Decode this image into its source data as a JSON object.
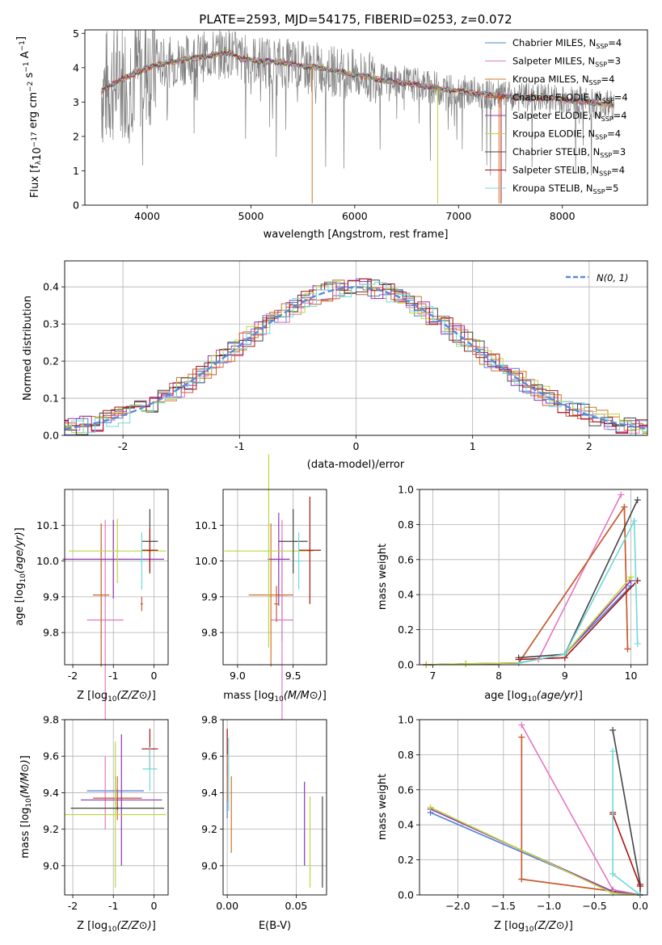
{
  "colors": {
    "chabrier_miles": "#4f7fd4",
    "salpeter_miles": "#e377c2",
    "kroupa_miles": "#d4732a",
    "chabrier_elodie": "#c85a35",
    "salpeter_elodie": "#9434b0",
    "kroupa_elodie": "#bcd63b",
    "chabrier_stelib": "#454545",
    "salpeter_stelib": "#aa1111",
    "kroupa_stelib": "#70d8d8",
    "data": "#808080",
    "gauss": "#5b8ad8",
    "grid": "#b0b0b0"
  },
  "chart_data": [
    {
      "id": "spectrum",
      "type": "line",
      "title": "PLATE=2593, MJD=54175, FIBERID=0253, z=0.072",
      "xlabel": "wavelength [Angstrom, rest frame]",
      "ylabel": "Flux [fλ10⁻¹⁷ erg cm⁻² s⁻¹ A⁻¹]",
      "xlim": [
        3400,
        8820
      ],
      "ylim": [
        0,
        5.1
      ],
      "xticks": [
        4000,
        5000,
        6000,
        7000,
        8000
      ],
      "yticks": [
        0,
        1,
        2,
        3,
        4,
        5
      ],
      "grid": false,
      "legend_position": "top-right",
      "continuum": [
        [
          3550,
          3.3
        ],
        [
          3650,
          3.5
        ],
        [
          3750,
          3.65
        ],
        [
          3850,
          3.8
        ],
        [
          3950,
          3.92
        ],
        [
          4050,
          4.05
        ],
        [
          4200,
          4.15
        ],
        [
          4400,
          4.25
        ],
        [
          4600,
          4.35
        ],
        [
          4800,
          4.45
        ],
        [
          4900,
          4.25
        ],
        [
          5100,
          4.2
        ],
        [
          5300,
          4.15
        ],
        [
          5500,
          4.05
        ],
        [
          5700,
          3.98
        ],
        [
          5900,
          3.85
        ],
        [
          6100,
          3.75
        ],
        [
          6300,
          3.62
        ],
        [
          6500,
          3.55
        ],
        [
          6700,
          3.45
        ],
        [
          6900,
          3.35
        ],
        [
          7100,
          3.28
        ],
        [
          7300,
          3.22
        ],
        [
          7500,
          3.15
        ],
        [
          7700,
          3.12
        ],
        [
          7900,
          3.1
        ],
        [
          8100,
          3.05
        ],
        [
          8300,
          2.98
        ],
        [
          8500,
          2.9
        ]
      ],
      "series": [
        {
          "name": "Chabrier MILES, NSSP=4",
          "key": "chabrier_miles"
        },
        {
          "name": "Salpeter MILES, NSSP=3",
          "key": "salpeter_miles"
        },
        {
          "name": "Kroupa MILES, NSSP=4",
          "key": "kroupa_miles"
        },
        {
          "name": "Chabrier ELODIE, NSSP=4",
          "key": "chabrier_elodie"
        },
        {
          "name": "Salpeter ELODIE, NSSP=4",
          "key": "salpeter_elodie"
        },
        {
          "name": "Kroupa ELODIE, NSSP=4",
          "key": "kroupa_elodie"
        },
        {
          "name": "Chabrier STELIB, NSSP=3",
          "key": "chabrier_stelib"
        },
        {
          "name": "Salpeter STELIB, NSSP=4",
          "key": "salpeter_stelib"
        },
        {
          "name": "Kroupa STELIB, NSSP=5",
          "key": "kroupa_stelib"
        }
      ],
      "legend": [
        {
          "pre": "Chabrier MILES, N",
          "sub": "SSP",
          "post": "=4",
          "key": "chabrier_miles"
        },
        {
          "pre": "Salpeter MILES, N",
          "sub": "SSP",
          "post": "=3",
          "key": "salpeter_miles"
        },
        {
          "pre": "Kroupa MILES, N",
          "sub": "SSP",
          "post": "=4",
          "key": "kroupa_miles"
        },
        {
          "pre": "Chabrier ELODIE, N",
          "sub": "SSP",
          "post": "=4",
          "key": "chabrier_elodie"
        },
        {
          "pre": "Salpeter ELODIE, N",
          "sub": "SSP",
          "post": "=4",
          "key": "salpeter_elodie"
        },
        {
          "pre": "Kroupa ELODIE, N",
          "sub": "SSP",
          "post": "=4",
          "key": "kroupa_elodie"
        },
        {
          "pre": "Chabrier STELIB, N",
          "sub": "SSP",
          "post": "=3",
          "key": "chabrier_stelib"
        },
        {
          "pre": "Salpeter STELIB, N",
          "sub": "SSP",
          "post": "=4",
          "key": "salpeter_stelib"
        },
        {
          "pre": "Kroupa STELIB, N",
          "sub": "SSP",
          "post": "=5",
          "key": "kroupa_stelib"
        }
      ]
    },
    {
      "id": "residuals",
      "type": "step-histogram",
      "xlabel": "(data-model)/error",
      "ylabel": "Normed distribution",
      "xlim": [
        -2.5,
        2.5
      ],
      "ylim": [
        0,
        0.47
      ],
      "xticks": [
        -2,
        -1,
        0,
        1,
        2
      ],
      "yticks": [
        0.0,
        0.1,
        0.2,
        0.3,
        0.4
      ],
      "grid": true,
      "legend_position": "top-right",
      "gauss_label": "N(0, 1)",
      "gauss_mean": 0,
      "gauss_sigma": 1,
      "bin_width": 0.1
    },
    {
      "id": "age_vs_Z",
      "type": "errorbar",
      "xlabel": "Z [log10(Z/Z⊙)]",
      "ylabel": "age [log10(age/yr)]",
      "xlim": [
        -2.2,
        0.35
      ],
      "ylim": [
        9.71,
        10.2
      ],
      "xticks": [
        -2,
        -1,
        0
      ],
      "yticks": [
        9.8,
        9.9,
        10.0,
        10.1
      ],
      "grid": true,
      "points": [
        {
          "key": "chabrier_miles",
          "x": -1.3,
          "y": 9.905,
          "xerr": 0.2,
          "yerr": 0.2
        },
        {
          "key": "salpeter_miles",
          "x": -1.2,
          "y": 9.835,
          "xerr": 0.45,
          "yerr": 0.28
        },
        {
          "key": "kroupa_miles",
          "x": -1.3,
          "y": 9.905,
          "xerr": 0.2,
          "yerr": 0.2
        },
        {
          "key": "chabrier_elodie",
          "x": -0.3,
          "y": 9.88,
          "xerr": 0.03,
          "yerr": 0.02
        },
        {
          "key": "salpeter_elodie",
          "x": -1.0,
          "y": 10.005,
          "xerr": 1.25,
          "yerr": 0.11
        },
        {
          "key": "kroupa_elodie",
          "x": -0.9,
          "y": 10.028,
          "xerr": 1.2,
          "yerr": 0.09
        },
        {
          "key": "chabrier_stelib",
          "x": -0.1,
          "y": 10.055,
          "xerr": 0.2,
          "yerr": 0.09
        },
        {
          "key": "salpeter_stelib",
          "x": -0.1,
          "y": 10.03,
          "xerr": 0.2,
          "yerr": 0.06
        },
        {
          "key": "kroupa_stelib",
          "x": -0.3,
          "y": 10.0,
          "xerr": 0.05,
          "yerr": 0.08
        }
      ]
    },
    {
      "id": "age_vs_mass",
      "type": "errorbar",
      "xlabel": "mass [log10(M/M⊙)]",
      "ylabel": "",
      "xlim": [
        8.87,
        9.8
      ],
      "ylim": [
        9.71,
        10.2
      ],
      "xticks": [
        9.0,
        9.5
      ],
      "yticks": [
        9.8,
        9.9,
        10.0,
        10.1
      ],
      "grid": true,
      "points": [
        {
          "key": "chabrier_miles",
          "x": 9.4,
          "y": 9.905,
          "xerr": 0.06,
          "yerr": 0.13
        },
        {
          "key": "salpeter_miles",
          "x": 9.4,
          "y": 9.835,
          "xerr": 0.1,
          "yerr": 0.28
        },
        {
          "key": "kroupa_miles",
          "x": 9.3,
          "y": 9.905,
          "xerr": 0.2,
          "yerr": 0.2
        },
        {
          "key": "chabrier_elodie",
          "x": 9.35,
          "y": 9.88,
          "xerr": 0.02,
          "yerr": 0.05
        },
        {
          "key": "salpeter_elodie",
          "x": 9.37,
          "y": 10.005,
          "xerr": 0.1,
          "yerr": 0.13
        },
        {
          "key": "kroupa_elodie",
          "x": 9.28,
          "y": 10.028,
          "xerr": 0.4,
          "yerr": 0.27
        },
        {
          "key": "chabrier_stelib",
          "x": 9.5,
          "y": 10.055,
          "xerr": 0.13,
          "yerr": 0.09
        },
        {
          "key": "salpeter_stelib",
          "x": 9.65,
          "y": 10.03,
          "xerr": 0.1,
          "yerr": 0.15
        },
        {
          "key": "kroupa_stelib",
          "x": 9.55,
          "y": 10.0,
          "xerr": 0.03,
          "yerr": 0.08
        }
      ]
    },
    {
      "id": "weight_vs_age",
      "type": "line",
      "xlabel": "age [log10(age/yr)]",
      "ylabel": "mass weight",
      "xlim": [
        6.8,
        10.25
      ],
      "ylim": [
        0,
        1
      ],
      "xticks": [
        7,
        8,
        9,
        10
      ],
      "yticks": [
        0.0,
        0.2,
        0.4,
        0.6,
        0.8,
        1.0
      ],
      "grid": true,
      "series": [
        {
          "key": "chabrier_miles",
          "x": [
            6.9,
            8.3,
            9.0,
            10.0
          ],
          "y": [
            0.0,
            0.01,
            0.06,
            0.45
          ]
        },
        {
          "key": "salpeter_miles",
          "x": [
            8.6,
            9.85
          ],
          "y": [
            0.03,
            0.97
          ]
        },
        {
          "key": "kroupa_miles",
          "x": [
            6.9,
            8.3,
            9.9,
            9.95
          ],
          "y": [
            0.0,
            0.01,
            0.9,
            0.09
          ]
        },
        {
          "key": "chabrier_elodie",
          "x": [
            6.9,
            8.3,
            9.9,
            9.95
          ],
          "y": [
            0.0,
            0.01,
            0.9,
            0.09
          ]
        },
        {
          "key": "salpeter_elodie",
          "x": [
            6.9,
            7.5,
            8.3,
            9.0,
            10.0
          ],
          "y": [
            0.0,
            0.005,
            0.01,
            0.06,
            0.48
          ]
        },
        {
          "key": "kroupa_elodie",
          "x": [
            6.9,
            7.5,
            8.3,
            9.0,
            10.0
          ],
          "y": [
            0.0,
            0.005,
            0.01,
            0.06,
            0.5
          ]
        },
        {
          "key": "chabrier_stelib",
          "x": [
            8.3,
            9.0,
            10.1
          ],
          "y": [
            0.04,
            0.06,
            0.94
          ]
        },
        {
          "key": "salpeter_stelib",
          "x": [
            8.3,
            9.0,
            10.1
          ],
          "y": [
            0.03,
            0.04,
            0.48
          ]
        },
        {
          "key": "kroupa_stelib",
          "x": [
            8.3,
            9.0,
            10.05,
            10.1
          ],
          "y": [
            0.01,
            0.06,
            0.82,
            0.12
          ]
        }
      ]
    },
    {
      "id": "mass_vs_Z",
      "type": "errorbar",
      "xlabel": "Z [log10(Z/Z⊙)]",
      "ylabel": "mass [log10(M/M⊙)]",
      "xlim": [
        -2.2,
        0.35
      ],
      "ylim": [
        8.84,
        9.8
      ],
      "xticks": [
        -2,
        -1,
        0
      ],
      "yticks": [
        9.0,
        9.2,
        9.4,
        9.6,
        9.8
      ],
      "grid": true,
      "points": [
        {
          "key": "chabrier_miles",
          "x": -0.95,
          "y": 9.41,
          "xerr": 0.7,
          "yerr": 0.08
        },
        {
          "key": "salpeter_miles",
          "x": -1.2,
          "y": 9.4,
          "xerr": 0.02,
          "yerr": 0.2
        },
        {
          "key": "kroupa_miles",
          "x": -0.9,
          "y": 9.37,
          "xerr": 0.6,
          "yerr": 0.12
        },
        {
          "key": "chabrier_elodie",
          "x": -0.9,
          "y": 9.37,
          "xerr": 0.6,
          "yerr": 0.05
        },
        {
          "key": "salpeter_elodie",
          "x": -0.8,
          "y": 9.36,
          "xerr": 1.0,
          "yerr": 0.36
        },
        {
          "key": "kroupa_elodie",
          "x": -0.95,
          "y": 9.28,
          "xerr": 1.25,
          "yerr": 0.4
        },
        {
          "key": "chabrier_stelib",
          "x": -0.9,
          "y": 9.315,
          "xerr": 1.15,
          "yerr": 0.01
        },
        {
          "key": "salpeter_stelib",
          "x": -0.1,
          "y": 9.64,
          "xerr": 0.2,
          "yerr": 0.11
        },
        {
          "key": "kroupa_stelib",
          "x": -0.1,
          "y": 9.53,
          "xerr": 0.18,
          "yerr": 0.12
        }
      ]
    },
    {
      "id": "mass_vs_EBV",
      "type": "errorbar",
      "xlabel": "E(B-V)",
      "ylabel": "",
      "xlim": [
        -0.003,
        0.072
      ],
      "ylim": [
        8.84,
        9.8
      ],
      "xticks": [
        0.0,
        0.05
      ],
      "yticks": [
        9.0,
        9.2,
        9.4,
        9.6,
        9.8
      ],
      "grid": true,
      "points": [
        {
          "key": "chabrier_miles",
          "x": 0.0,
          "y": 9.41,
          "xerr": 0,
          "yerr": 0.15
        },
        {
          "key": "salpeter_miles",
          "x": 0.0,
          "y": 9.6,
          "xerr": 0,
          "yerr": 0.1
        },
        {
          "key": "kroupa_miles",
          "x": 0.003,
          "y": 9.28,
          "xerr": 0,
          "yerr": 0.21
        },
        {
          "key": "chabrier_elodie",
          "x": 0.0,
          "y": 9.55,
          "xerr": 0,
          "yerr": 0.2
        },
        {
          "key": "salpeter_elodie",
          "x": 0.056,
          "y": 9.23,
          "xerr": 0,
          "yerr": 0.23
        },
        {
          "key": "kroupa_elodie",
          "x": 0.06,
          "y": 9.13,
          "xerr": 0,
          "yerr": 0.25
        },
        {
          "key": "chabrier_stelib",
          "x": 0.069,
          "y": 9.13,
          "xerr": 0,
          "yerr": 0.25
        },
        {
          "key": "salpeter_stelib",
          "x": 0.0,
          "y": 9.68,
          "xerr": 0,
          "yerr": 0.07
        },
        {
          "key": "kroupa_stelib",
          "x": 0.001,
          "y": 9.5,
          "xerr": 0,
          "yerr": 0.2
        }
      ]
    },
    {
      "id": "weight_vs_Z",
      "type": "line",
      "xlabel": "Z [log10(Z/Z⊙)]",
      "ylabel": "mass weight",
      "xlim": [
        -2.42,
        0.08
      ],
      "ylim": [
        0,
        1
      ],
      "xticks": [
        -2.0,
        -1.5,
        -1.0,
        -0.5,
        0.0
      ],
      "yticks": [
        0.0,
        0.2,
        0.4,
        0.6,
        0.8,
        1.0
      ],
      "grid": true,
      "series": [
        {
          "key": "chabrier_miles",
          "x": [
            -2.3,
            -0.3,
            0.0
          ],
          "y": [
            0.47,
            0.02,
            0.0
          ]
        },
        {
          "key": "salpeter_miles",
          "x": [
            -1.3,
            -0.3,
            0.0
          ],
          "y": [
            0.97,
            0.03,
            0.0
          ]
        },
        {
          "key": "kroupa_miles",
          "x": [
            -1.3,
            -1.3,
            0.0
          ],
          "y": [
            0.9,
            0.09,
            0.0
          ]
        },
        {
          "key": "chabrier_elodie",
          "x": [
            -1.3,
            -1.3,
            0.0
          ],
          "y": [
            0.9,
            0.09,
            0.0
          ]
        },
        {
          "key": "salpeter_elodie",
          "x": [
            -2.3,
            -0.3,
            0.0
          ],
          "y": [
            0.49,
            0.02,
            0.0
          ]
        },
        {
          "key": "kroupa_elodie",
          "x": [
            -2.3,
            -0.3,
            0.0
          ],
          "y": [
            0.5,
            0.01,
            0.0
          ]
        },
        {
          "key": "chabrier_stelib",
          "x": [
            -0.3,
            0.0,
            0.0
          ],
          "y": [
            0.94,
            0.06,
            0.0
          ]
        },
        {
          "key": "salpeter_stelib",
          "x": [
            -0.3,
            -0.3,
            0.0
          ],
          "y": [
            0.47,
            0.46,
            0.05
          ]
        },
        {
          "key": "kroupa_stelib",
          "x": [
            -0.3,
            -0.3,
            0.0
          ],
          "y": [
            0.82,
            0.12,
            0.0
          ]
        }
      ]
    }
  ]
}
